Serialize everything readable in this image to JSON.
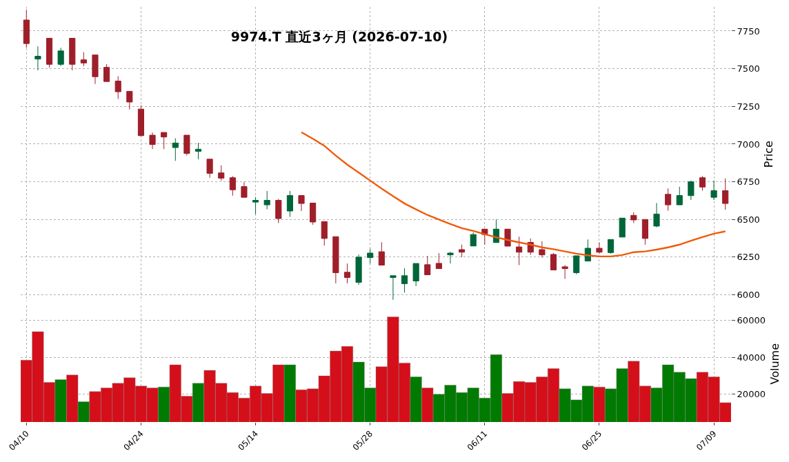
{
  "chart_data": [
    {
      "type": "candlestick",
      "title": "9974.T 直近3ヶ月 (2026-07-10)",
      "ylabel": "Price",
      "categories": [
        null,
        null,
        null,
        null,
        null,
        null,
        null,
        null,
        null,
        null,
        null,
        null,
        null,
        null,
        null,
        null,
        null,
        null,
        null,
        null,
        null,
        null,
        null,
        null,
        null,
        null,
        null,
        null,
        null,
        null,
        null,
        null,
        null,
        null,
        null,
        null,
        null,
        null,
        null,
        null,
        null,
        null,
        null,
        null,
        null,
        null,
        null,
        null,
        null,
        null,
        null,
        null,
        null,
        null,
        null,
        null,
        null,
        null,
        null,
        null,
        null,
        null
      ],
      "ohlc": [
        [
          7823,
          7891,
          7639,
          7667
        ],
        [
          7564,
          7648,
          7489,
          7583
        ],
        [
          7702,
          7702,
          7508,
          7529
        ],
        [
          7529,
          7639,
          7518,
          7618
        ],
        [
          7702,
          7702,
          7489,
          7529
        ],
        [
          7559,
          7609,
          7517,
          7538
        ],
        [
          7591,
          7591,
          7399,
          7447
        ],
        [
          7509,
          7530,
          7415,
          7415
        ],
        [
          7418,
          7450,
          7299,
          7347
        ],
        [
          7350,
          7350,
          7230,
          7279
        ],
        [
          7232,
          7258,
          7049,
          7056
        ],
        [
          7059,
          7077,
          6967,
          6997
        ],
        [
          7077,
          7077,
          6967,
          7047
        ],
        [
          6977,
          7039,
          6889,
          7007
        ],
        [
          7059,
          7059,
          6924,
          6938
        ],
        [
          6952,
          7008,
          6899,
          6966
        ],
        [
          6900,
          6900,
          6776,
          6806
        ],
        [
          6809,
          6859,
          6758,
          6774
        ],
        [
          6777,
          6788,
          6658,
          6697
        ],
        [
          6718,
          6749,
          6647,
          6647
        ],
        [
          6615,
          6649,
          6535,
          6627
        ],
        [
          6597,
          6689,
          6567,
          6627
        ],
        [
          6627,
          6636,
          6476,
          6506
        ],
        [
          6556,
          6689,
          6517,
          6659
        ],
        [
          6659,
          6659,
          6556,
          6606
        ],
        [
          6609,
          6609,
          6465,
          6483
        ],
        [
          6486,
          6486,
          6326,
          6374
        ],
        [
          6386,
          6386,
          6076,
          6147
        ],
        [
          6150,
          6208,
          6076,
          6115
        ],
        [
          6083,
          6267,
          6067,
          6250
        ],
        [
          6247,
          6306,
          6208,
          6277
        ],
        [
          6286,
          6349,
          6197,
          6197
        ],
        [
          6115,
          6127,
          5967,
          6127
        ],
        [
          6074,
          6176,
          6015,
          6127
        ],
        [
          6092,
          6208,
          6058,
          6208
        ],
        [
          6200,
          6258,
          6133,
          6133
        ],
        [
          6209,
          6277,
          6174,
          6174
        ],
        [
          6265,
          6285,
          6208,
          6277
        ],
        [
          6300,
          6333,
          6250,
          6283
        ],
        [
          6324,
          6415,
          6324,
          6400
        ],
        [
          6436,
          6436,
          6333,
          6400
        ],
        [
          6347,
          6500,
          6347,
          6436
        ],
        [
          6436,
          6436,
          6323,
          6323
        ],
        [
          6318,
          6386,
          6197,
          6283
        ],
        [
          6348,
          6374,
          6265,
          6283
        ],
        [
          6300,
          6356,
          6247,
          6265
        ],
        [
          6268,
          6277,
          6165,
          6165
        ],
        [
          6186,
          6197,
          6106,
          6174
        ],
        [
          6147,
          6259,
          6136,
          6259
        ],
        [
          6224,
          6367,
          6224,
          6309
        ],
        [
          6309,
          6348,
          6273,
          6283
        ],
        [
          6280,
          6367,
          6273,
          6367
        ],
        [
          6383,
          6509,
          6383,
          6509
        ],
        [
          6527,
          6548,
          6476,
          6497
        ],
        [
          6500,
          6500,
          6333,
          6374
        ],
        [
          6456,
          6609,
          6448,
          6536
        ],
        [
          6667,
          6706,
          6558,
          6597
        ],
        [
          6597,
          6717,
          6597,
          6659
        ],
        [
          6658,
          6758,
          6629,
          6750
        ],
        [
          6777,
          6788,
          6691,
          6715
        ],
        [
          6647,
          6758,
          6629,
          6691
        ],
        [
          6691,
          6773,
          6565,
          6606
        ]
      ],
      "colors": [
        "#9e1f2a",
        "#00663a",
        "#9e1f2a",
        "#00663a",
        "#9e1f2a",
        "#9e1f2a",
        "#9e1f2a",
        "#9e1f2a",
        "#9e1f2a",
        "#9e1f2a",
        "#9e1f2a",
        "#9e1f2a",
        "#9e1f2a",
        "#00663a",
        "#9e1f2a",
        "#00663a",
        "#9e1f2a",
        "#9e1f2a",
        "#9e1f2a",
        "#9e1f2a",
        "#00663a",
        "#00663a",
        "#9e1f2a",
        "#00663a",
        "#9e1f2a",
        "#9e1f2a",
        "#9e1f2a",
        "#9e1f2a",
        "#9e1f2a",
        "#00663a",
        "#00663a",
        "#9e1f2a",
        "#00663a",
        "#00663a",
        "#00663a",
        "#9e1f2a",
        "#9e1f2a",
        "#00663a",
        "#9e1f2a",
        "#00663a",
        "#9e1f2a",
        "#00663a",
        "#9e1f2a",
        "#9e1f2a",
        "#9e1f2a",
        "#9e1f2a",
        "#9e1f2a",
        "#9e1f2a",
        "#00663a",
        "#00663a",
        "#9e1f2a",
        "#00663a",
        "#00663a",
        "#9e1f2a",
        "#9e1f2a",
        "#00663a",
        "#9e1f2a",
        "#00663a",
        "#00663a",
        "#9e1f2a",
        "#00663a",
        "#9e1f2a"
      ],
      "series": [
        {
          "type": "line",
          "color": "#f05a0a",
          "values": [
            null,
            null,
            null,
            null,
            null,
            null,
            null,
            null,
            null,
            null,
            null,
            null,
            null,
            null,
            null,
            null,
            null,
            null,
            null,
            null,
            null,
            null,
            null,
            null,
            7079,
            7035,
            6989,
            6924,
            6864,
            6811,
            6758,
            6705,
            6655,
            6606,
            6567,
            6530,
            6500,
            6470,
            6442,
            6424,
            6402,
            6382,
            6364,
            6348,
            6333,
            6315,
            6303,
            6288,
            6273,
            6262,
            6255,
            6255,
            6264,
            6283,
            6288,
            6300,
            6315,
            6333,
            6359,
            6383,
            6406,
            6421
          ]
        }
      ],
      "ylim": [
        5955,
        7910
      ],
      "yticks": [
        6000,
        6250,
        6500,
        6750,
        7000,
        7250,
        7500,
        7750
      ],
      "tick_labels": "y",
      "grid": true
    },
    {
      "type": "bar",
      "ylabel": "Volume",
      "categories": [
        "04/10",
        null,
        null,
        null,
        null,
        null,
        null,
        null,
        null,
        null,
        "04/24",
        null,
        null,
        null,
        null,
        null,
        null,
        null,
        null,
        null,
        "05/14",
        null,
        null,
        null,
        null,
        null,
        null,
        null,
        null,
        null,
        "05/28",
        null,
        null,
        null,
        null,
        null,
        null,
        null,
        null,
        null,
        "06/11",
        null,
        null,
        null,
        null,
        null,
        null,
        null,
        null,
        null,
        "06/25",
        null,
        null,
        null,
        null,
        null,
        null,
        null,
        null,
        null,
        "07/09",
        null
      ],
      "values": [
        38500,
        54000,
        26500,
        28000,
        30500,
        16000,
        21500,
        23500,
        26000,
        29000,
        24500,
        23500,
        24000,
        36000,
        19000,
        26000,
        33000,
        26000,
        21000,
        18000,
        24500,
        20500,
        36000,
        36000,
        22500,
        23000,
        30000,
        43500,
        46000,
        37500,
        23500,
        35000,
        62000,
        37000,
        29500,
        23500,
        20000,
        25000,
        21000,
        23500,
        18000,
        41500,
        20500,
        27000,
        26500,
        29500,
        34000,
        23000,
        17000,
        24500,
        24000,
        23000,
        34000,
        38000,
        24500,
        23500,
        36000,
        32000,
        28500,
        32000,
        29500,
        15500
      ],
      "colors": [
        "#d40f1a",
        "#d40f1a",
        "#d40f1a",
        "#007a00",
        "#d40f1a",
        "#007a00",
        "#d40f1a",
        "#d40f1a",
        "#d40f1a",
        "#d40f1a",
        "#d40f1a",
        "#d40f1a",
        "#007a00",
        "#d40f1a",
        "#d40f1a",
        "#007a00",
        "#d40f1a",
        "#d40f1a",
        "#d40f1a",
        "#d40f1a",
        "#d40f1a",
        "#d40f1a",
        "#d40f1a",
        "#007a00",
        "#d40f1a",
        "#d40f1a",
        "#d40f1a",
        "#d40f1a",
        "#d40f1a",
        "#007a00",
        "#007a00",
        "#d40f1a",
        "#d40f1a",
        "#d40f1a",
        "#007a00",
        "#d40f1a",
        "#007a00",
        "#007a00",
        "#007a00",
        "#007a00",
        "#007a00",
        "#007a00",
        "#d40f1a",
        "#d40f1a",
        "#d40f1a",
        "#d40f1a",
        "#d40f1a",
        "#007a00",
        "#007a00",
        "#007a00",
        "#d40f1a",
        "#007a00",
        "#007a00",
        "#d40f1a",
        "#d40f1a",
        "#007a00",
        "#007a00",
        "#007a00",
        "#007a00",
        "#d40f1a",
        "#d40f1a",
        "#d40f1a"
      ],
      "ylim": [
        5000,
        68000
      ],
      "yticks": [
        20000,
        40000,
        60000
      ],
      "grid": true
    }
  ]
}
